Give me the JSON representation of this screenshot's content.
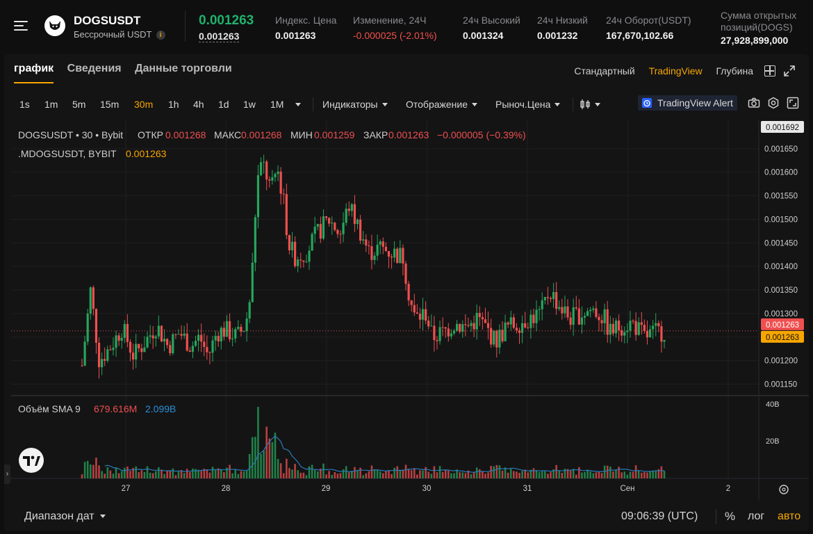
{
  "header": {
    "symbol": "DOGSUSDT",
    "subtitle": "Бессрочный USDT",
    "info_badge": "i",
    "last_price": "0.001263",
    "mark_price": "0.001263",
    "stats": [
      {
        "label": "Индекс. Цена",
        "value": "0.001263",
        "color": "normal"
      },
      {
        "label": "Изменение, 24Ч",
        "value": "-0.000025 (-2.01%)",
        "color": "red"
      },
      {
        "label": "24ч Высокий",
        "value": "0.001324",
        "color": "normal"
      },
      {
        "label": "24ч Низкий",
        "value": "0.001232",
        "color": "normal"
      },
      {
        "label": "24ч Оборот(USDT)",
        "value": "167,670,102.66",
        "color": "normal"
      },
      {
        "label_line1": "Сумма открытых",
        "label_line2": "позиций(DOGS)",
        "value": "27,928,899,000",
        "color": "normal"
      }
    ]
  },
  "tabs": [
    {
      "label": "график",
      "active": true
    },
    {
      "label": "Сведения",
      "active": false
    },
    {
      "label": "Данные торговли",
      "active": false
    }
  ],
  "views": [
    {
      "label": "Стандартный",
      "active": false
    },
    {
      "label": "TradingView",
      "active": true
    },
    {
      "label": "Глубина",
      "active": false
    }
  ],
  "toolbar": {
    "timeframes": [
      "1s",
      "1m",
      "5m",
      "15m",
      "30m",
      "1h",
      "4h",
      "1d",
      "1w",
      "1M"
    ],
    "active_timeframe": "30m",
    "indicators": "Индикаторы",
    "display": "Отображение",
    "price_type": "Рыноч.Цена",
    "alert": "TradingView Alert"
  },
  "legend": {
    "title": "DOGSUSDT • 30 • Bybit",
    "o_label": "ОТКР",
    "o": "0.001268",
    "h_label": "МАКС",
    "h": "0.001268",
    "l_label": "МИН",
    "l": "0.001259",
    "c_label": "ЗАКР",
    "c": "0.001263",
    "change": "−0.000005 (−0.39%)",
    "mark_title": ".MDOGSUSDT, BYBIT",
    "mark_value": "0.001263",
    "volume_title": "Объём SMA 9",
    "volume_val": "679.616M",
    "volume_sma": "2.099B"
  },
  "price_axis": {
    "top_label": "0.001692",
    "ticks": [
      "0.001650",
      "0.001600",
      "0.001550",
      "0.001500",
      "0.001450",
      "0.001400",
      "0.001350",
      "0.001300",
      "0.001250",
      "0.001200",
      "0.001150"
    ],
    "last_label": "0.001263",
    "mark_label": "0.001263"
  },
  "volume_axis": {
    "ticks": [
      "40B",
      "20B"
    ]
  },
  "time_axis": {
    "ticks": [
      "27",
      "28",
      "29",
      "30",
      "31",
      "Сен",
      "2"
    ]
  },
  "bottom": {
    "range": "Диапазон дат",
    "clock": "09:06:39 (UTC)",
    "percent": "%",
    "log": "лог",
    "auto": "авто"
  },
  "colors": {
    "up": "#26a65b",
    "down": "#ef4f4f",
    "accent": "#f7a600",
    "volume_sma_line": "#2b7bb9"
  },
  "chart_data": {
    "type": "candlestick",
    "interval": "30m",
    "ylim": [
      0.00113,
      0.0017
    ],
    "volume_ylim": [
      0,
      42
    ],
    "volume_unit": "B",
    "x_days": [
      "27",
      "28",
      "29",
      "30",
      "31",
      "Сен",
      "2"
    ],
    "anchors": [
      [
        0.0,
        0.00119
      ],
      [
        1.5,
        0.00135
      ],
      [
        3.0,
        0.0012
      ],
      [
        5.0,
        0.00123
      ],
      [
        7.0,
        0.00127
      ],
      [
        9.0,
        0.00121
      ],
      [
        11.0,
        0.00124
      ],
      [
        13.0,
        0.001275
      ],
      [
        15.0,
        0.00123
      ],
      [
        17.0,
        0.00126
      ],
      [
        19.0,
        0.00123
      ],
      [
        20.5,
        0.00125
      ],
      [
        22.0,
        0.00121
      ],
      [
        23.5,
        0.00126
      ],
      [
        25.0,
        0.001265
      ],
      [
        27.0,
        0.00125
      ],
      [
        28.5,
        0.001275
      ],
      [
        29.5,
        0.00135
      ],
      [
        30.5,
        0.00158
      ],
      [
        31.5,
        0.00162
      ],
      [
        33.0,
        0.00156
      ],
      [
        34.0,
        0.00161
      ],
      [
        35.0,
        0.00155
      ],
      [
        36.0,
        0.00145
      ],
      [
        37.0,
        0.00142
      ],
      [
        39.0,
        0.00143
      ],
      [
        41.0,
        0.00147
      ],
      [
        43.0,
        0.0015
      ],
      [
        45.0,
        0.00147
      ],
      [
        46.5,
        0.00153
      ],
      [
        48.0,
        0.00149
      ],
      [
        50.0,
        0.00143
      ],
      [
        52.0,
        0.00144
      ],
      [
        54.0,
        0.00143
      ],
      [
        56.0,
        0.00142
      ],
      [
        57.0,
        0.00134
      ],
      [
        58.0,
        0.00129
      ],
      [
        60.0,
        0.0013
      ],
      [
        61.0,
        0.00125
      ],
      [
        63.0,
        0.00126
      ],
      [
        65.0,
        0.00128
      ],
      [
        67.0,
        0.00127
      ],
      [
        69.0,
        0.00129
      ],
      [
        71.0,
        0.00126
      ],
      [
        72.0,
        0.00124
      ],
      [
        74.0,
        0.00127
      ],
      [
        76.0,
        0.00128
      ],
      [
        78.0,
        0.00129
      ],
      [
        80.0,
        0.0013
      ],
      [
        81.5,
        0.00135
      ],
      [
        83.0,
        0.00132
      ],
      [
        85.0,
        0.00129
      ],
      [
        87.0,
        0.0013
      ],
      [
        89.0,
        0.00131
      ],
      [
        91.0,
        0.00129
      ],
      [
        92.0,
        0.00126
      ],
      [
        94.0,
        0.001275
      ],
      [
        96.0,
        0.00128
      ],
      [
        98.0,
        0.00125
      ],
      [
        100.0,
        0.00126
      ],
      [
        101.5,
        0.001263
      ]
    ]
  }
}
